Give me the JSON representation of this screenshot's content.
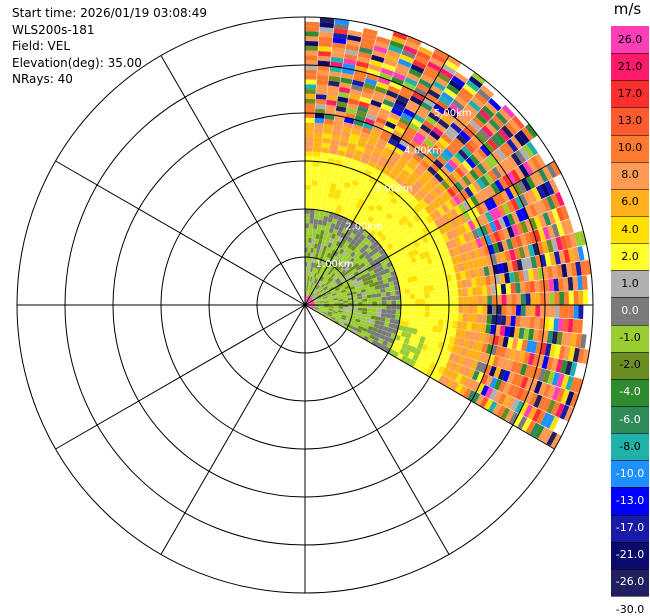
{
  "info": {
    "start_time": "Start time: 2026/01/19 03:08:49",
    "instrument": "WLS200s-181",
    "field": "Field: VEL",
    "elevation": "Elevation(deg): 35.00",
    "nrays": "NRays: 40"
  },
  "chart_data": {
    "type": "ppi",
    "field": "VEL",
    "unit": "m/s",
    "elevation_deg": 35.0,
    "n_rays": 40,
    "azimuth_range_deg": [
      0,
      120
    ],
    "max_range_km": 6.0,
    "range_ring_labels": [
      "1.00km",
      "2.00km",
      "3.00km",
      "4.00km",
      "5.00km"
    ],
    "colorbar": {
      "ticks": [
        "26.0",
        "21.0",
        "17.0",
        "13.0",
        "10.0",
        "8.0",
        "6.0",
        "4.0",
        "2.0",
        "1.0",
        "0.0",
        "-1.0",
        "-2.0",
        "-4.0",
        "-6.0",
        "-8.0",
        "-10.0",
        "-13.0",
        "-17.0",
        "-21.0",
        "-26.0",
        "-30.0"
      ],
      "colors": [
        "#ff3eb8",
        "#ff1a6a",
        "#ff2f2f",
        "#ff5b2f",
        "#ff7a2f",
        "#ff9a52",
        "#ffb01a",
        "#ffe000",
        "#ffff2a",
        "#b0b0b0",
        "#7a7a7a",
        "#9acd32",
        "#6b8e23",
        "#2e8b2e",
        "#2e8b57",
        "#20b2aa",
        "#1e90ff",
        "#0000ff",
        "#1a1aa8",
        "#0b0b6e",
        "#202060"
      ]
    },
    "velocity_zones": [
      {
        "range_km": [
          0.0,
          0.2
        ],
        "value": "21.0 to 26.0"
      },
      {
        "range_km": [
          0.2,
          1.6
        ],
        "value": "-1.0 to 1.0"
      },
      {
        "range_km": [
          1.6,
          2.0
        ],
        "value": "0.0"
      },
      {
        "range_km": [
          2.0,
          3.2
        ],
        "value": "2.0 to 4.0"
      },
      {
        "range_km": [
          3.2,
          3.8
        ],
        "value": "6.0 to 8.0"
      },
      {
        "range_km": [
          3.8,
          6.0
        ],
        "value": "mixed -30.0 to 26.0"
      }
    ]
  }
}
